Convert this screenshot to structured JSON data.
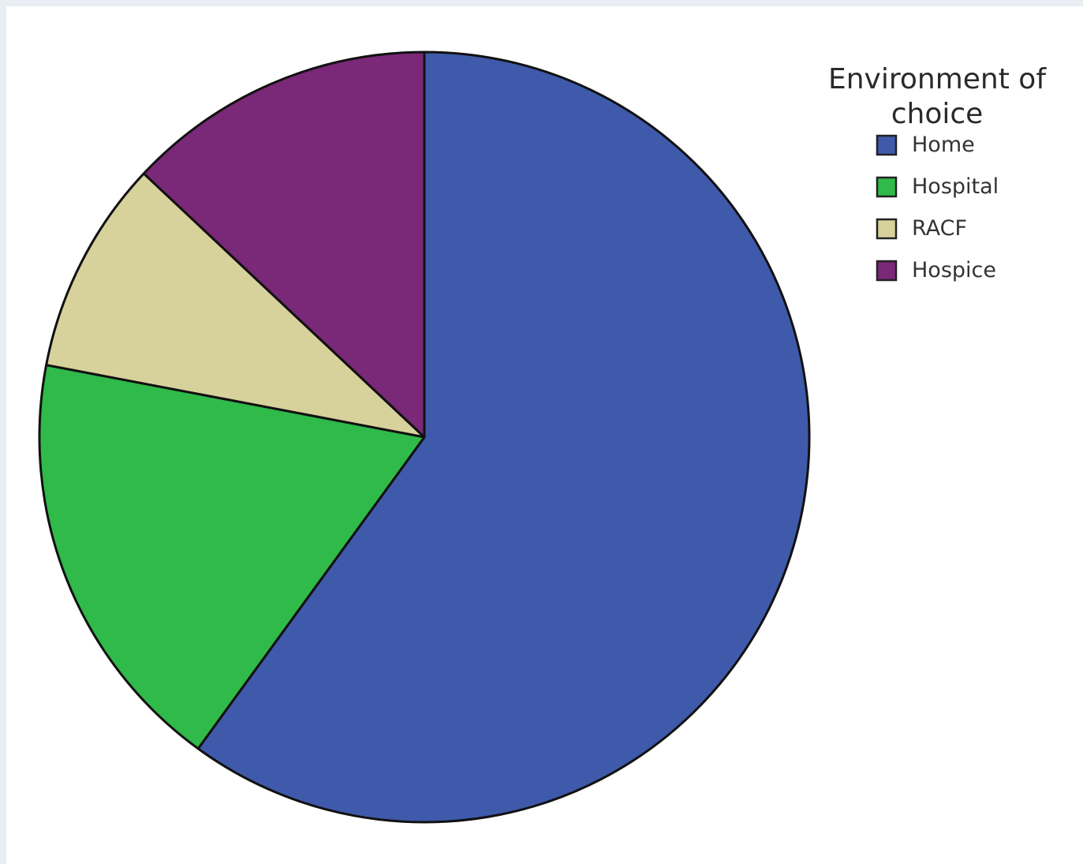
{
  "chart_data": {
    "type": "pie",
    "legend_title_lines": [
      "Environment of",
      "choice"
    ],
    "legend_position": "top-right",
    "start_angle_deg": 0,
    "direction": "clockwise",
    "slices": [
      {
        "label": "Home",
        "value": 60.0,
        "color": "#3f5aaa"
      },
      {
        "label": "Hospital",
        "value": 18.0,
        "color": "#2fba4a"
      },
      {
        "label": "RACF",
        "value": 9.0,
        "color": "#d7d19b"
      },
      {
        "label": "Hospice",
        "value": 13.0,
        "color": "#7a2878"
      }
    ]
  }
}
